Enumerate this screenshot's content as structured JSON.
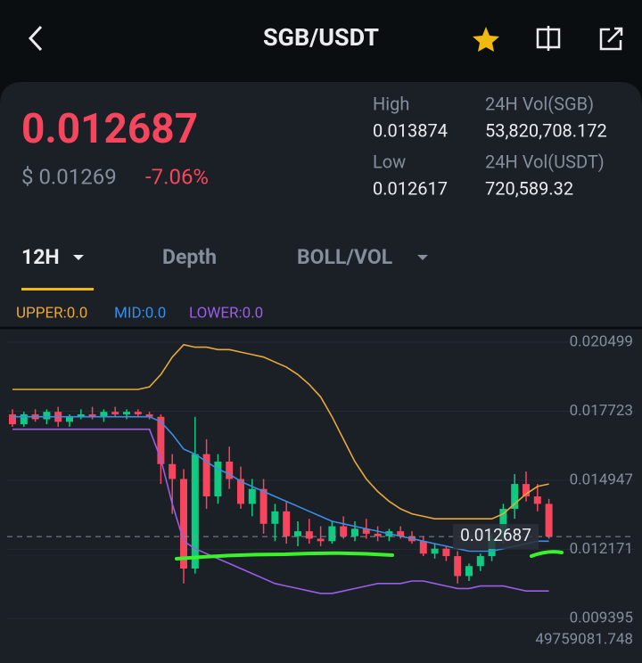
{
  "header": {
    "title": "SGB/USDT"
  },
  "ticker": {
    "price": "0.012687",
    "fiat": "$ 0.01269",
    "change": "-7.06%",
    "stats": [
      {
        "label": "High",
        "value": "0.013874"
      },
      {
        "label": "24H Vol(SGB)",
        "value": "53,820,708.172"
      },
      {
        "label": "Low",
        "value": "0.012617"
      },
      {
        "label": "24H Vol(USDT)",
        "value": "720,589.32"
      }
    ]
  },
  "tabs": [
    "12H",
    "Depth",
    "BOLL/VOL"
  ],
  "chart_data": {
    "type": "candlestick",
    "ylim": [
      0.009395,
      0.020499
    ],
    "yticks": [
      0.020499,
      0.017723,
      0.014947,
      0.012171,
      0.009395
    ],
    "grid": true,
    "current_price": 0.012687,
    "volume_label": 49759081.748,
    "up_color": "#0ecb81",
    "down_color": "#f6465d",
    "ohlc": {
      "open": [
        0.0176,
        0.0172,
        0.0176,
        0.0174,
        0.0177,
        0.0173,
        0.0175,
        0.0176,
        0.0175,
        0.0177,
        0.0176,
        0.0177,
        0.0176,
        0.0175,
        0.0156,
        0.015,
        0.0114,
        0.016,
        0.0143,
        0.0157,
        0.015,
        0.014,
        0.0146,
        0.0132,
        0.0137,
        0.0127,
        0.0129,
        0.0126,
        0.0125,
        0.0131,
        0.0127,
        0.013,
        0.0128,
        0.0127,
        0.0129,
        0.0127,
        0.0125,
        0.012,
        0.0122,
        0.0119,
        0.0111,
        0.0115,
        0.0119,
        0.0126,
        0.0138,
        0.0148,
        0.0143,
        0.014
      ],
      "high": [
        0.0178,
        0.0177,
        0.0178,
        0.0178,
        0.0179,
        0.0176,
        0.0178,
        0.0179,
        0.0178,
        0.0179,
        0.0178,
        0.0178,
        0.0177,
        0.0176,
        0.016,
        0.0154,
        0.0175,
        0.0166,
        0.016,
        0.0163,
        0.0155,
        0.015,
        0.015,
        0.014,
        0.0141,
        0.0133,
        0.0134,
        0.0131,
        0.0133,
        0.0135,
        0.0133,
        0.0134,
        0.0131,
        0.013,
        0.0131,
        0.0129,
        0.0127,
        0.0124,
        0.0123,
        0.0121,
        0.0116,
        0.012,
        0.0128,
        0.014,
        0.0152,
        0.0153,
        0.0148,
        0.0142
      ],
      "low": [
        0.0171,
        0.0171,
        0.0173,
        0.0172,
        0.0171,
        0.0171,
        0.0174,
        0.0174,
        0.0173,
        0.0175,
        0.0174,
        0.0175,
        0.0174,
        0.0148,
        0.0136,
        0.0108,
        0.0112,
        0.0138,
        0.014,
        0.0146,
        0.0138,
        0.0135,
        0.0128,
        0.0125,
        0.0124,
        0.0123,
        0.0124,
        0.0123,
        0.0124,
        0.0126,
        0.0125,
        0.0126,
        0.0125,
        0.0125,
        0.0126,
        0.0124,
        0.0119,
        0.0118,
        0.0117,
        0.0108,
        0.0109,
        0.0113,
        0.0117,
        0.0124,
        0.0134,
        0.0141,
        0.0137,
        0.0126
      ],
      "close": [
        0.0172,
        0.0176,
        0.0174,
        0.0177,
        0.0173,
        0.0175,
        0.0176,
        0.0175,
        0.0177,
        0.0176,
        0.0177,
        0.0176,
        0.0175,
        0.0156,
        0.015,
        0.0114,
        0.016,
        0.0143,
        0.0157,
        0.015,
        0.014,
        0.0146,
        0.0132,
        0.0137,
        0.0127,
        0.0129,
        0.0126,
        0.0125,
        0.0131,
        0.0127,
        0.013,
        0.0128,
        0.0127,
        0.0129,
        0.0127,
        0.0125,
        0.012,
        0.0122,
        0.0119,
        0.0111,
        0.0115,
        0.0119,
        0.0126,
        0.0138,
        0.0148,
        0.0143,
        0.014,
        0.012687
      ]
    },
    "series": [
      {
        "name": "UPPER:0.0",
        "color": "#e8a93a",
        "values": [
          0.0186,
          0.0186,
          0.0186,
          0.0186,
          0.0186,
          0.0186,
          0.0186,
          0.0186,
          0.0186,
          0.0186,
          0.0186,
          0.0186,
          0.0187,
          0.0192,
          0.0199,
          0.0204,
          0.0203,
          0.0203,
          0.0202,
          0.0202,
          0.0201,
          0.02,
          0.0199,
          0.0197,
          0.0195,
          0.0192,
          0.0188,
          0.0183,
          0.0175,
          0.0166,
          0.0157,
          0.015,
          0.0145,
          0.0141,
          0.0138,
          0.0136,
          0.0135,
          0.0134,
          0.0134,
          0.0134,
          0.0134,
          0.0134,
          0.0134,
          0.0136,
          0.014,
          0.0144,
          0.0147,
          0.0148
        ]
      },
      {
        "name": "MID:0.0",
        "color": "#3a8ee6",
        "values": [
          0.0175,
          0.0175,
          0.0175,
          0.0175,
          0.0175,
          0.0175,
          0.0175,
          0.0175,
          0.0175,
          0.0175,
          0.0175,
          0.0175,
          0.0175,
          0.0173,
          0.0168,
          0.0162,
          0.016,
          0.0157,
          0.0154,
          0.0152,
          0.0149,
          0.0147,
          0.0145,
          0.0143,
          0.0141,
          0.0139,
          0.0137,
          0.0135,
          0.0133,
          0.0132,
          0.0131,
          0.013,
          0.0129,
          0.0128,
          0.0127,
          0.0126,
          0.0125,
          0.0124,
          0.0123,
          0.0122,
          0.0121,
          0.0121,
          0.0121,
          0.0122,
          0.0123,
          0.0124,
          0.0125,
          0.0125
        ]
      },
      {
        "name": "LOWER:0.0",
        "color": "#9a5ee8",
        "values": [
          0.017,
          0.017,
          0.017,
          0.017,
          0.017,
          0.017,
          0.017,
          0.017,
          0.017,
          0.017,
          0.017,
          0.017,
          0.017,
          0.0158,
          0.014,
          0.0125,
          0.0122,
          0.012,
          0.0118,
          0.0116,
          0.0114,
          0.0112,
          0.011,
          0.0108,
          0.0107,
          0.0106,
          0.0105,
          0.0104,
          0.0104,
          0.0105,
          0.0106,
          0.0107,
          0.0108,
          0.0108,
          0.0108,
          0.0109,
          0.0109,
          0.0108,
          0.0107,
          0.0106,
          0.0106,
          0.0107,
          0.0107,
          0.0107,
          0.0106,
          0.0105,
          0.0105,
          0.0105
        ]
      }
    ]
  }
}
